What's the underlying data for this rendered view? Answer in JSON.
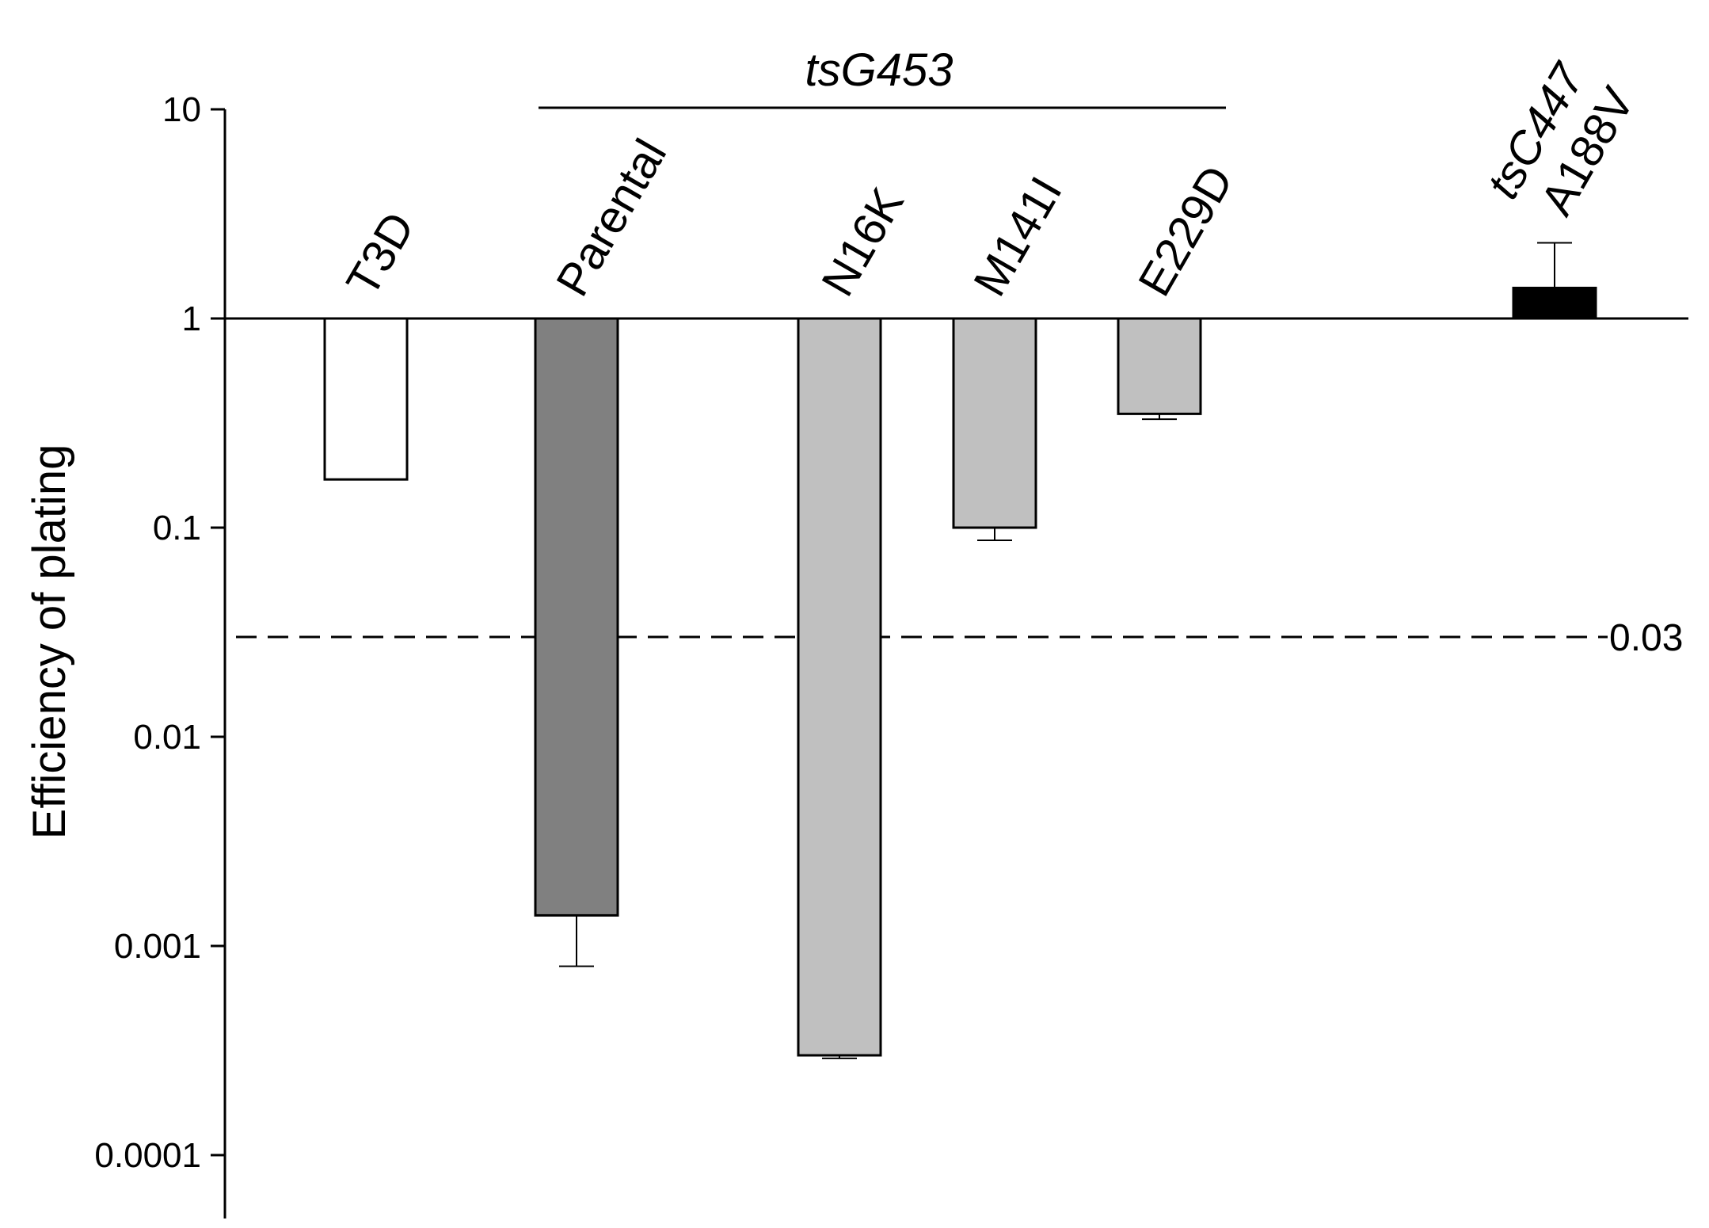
{
  "chart_data": {
    "type": "bar",
    "ylabel": "Efficiency of plating",
    "yscale": "log",
    "ylim": [
      0.0001,
      10
    ],
    "yticks": [
      {
        "value": 10,
        "label": "10"
      },
      {
        "value": 1,
        "label": "1"
      },
      {
        "value": 0.1,
        "label": "0.1"
      },
      {
        "value": 0.01,
        "label": "0.01"
      },
      {
        "value": 0.001,
        "label": "0.001"
      },
      {
        "value": 0.0001,
        "label": "0.0001"
      }
    ],
    "baseline": 1,
    "reference_line": {
      "value": 0.03,
      "label": "0.03",
      "style": "dashed"
    },
    "group": {
      "label": "tsG453",
      "categories": [
        "Parental",
        "N16K",
        "M141I",
        "E229D"
      ]
    },
    "bars": [
      {
        "category": "T3D",
        "value": 0.17,
        "error": null,
        "color": "#ffffff"
      },
      {
        "category": "Parental",
        "value": 0.0014,
        "error": 0.0008,
        "color": "#808080"
      },
      {
        "category": "N16K",
        "value": 0.0003,
        "error": 0.00029,
        "color": "#c0c0c0"
      },
      {
        "category": "M141I",
        "value": 0.1,
        "error": 0.087,
        "color": "#c0c0c0"
      },
      {
        "category": "E229D",
        "value": 0.35,
        "error": 0.33,
        "color": "#c0c0c0"
      },
      {
        "category": "tsC447\nA188V",
        "category_lines": [
          "tsC447",
          "A188V"
        ],
        "category_italic": [
          true,
          false
        ],
        "value": 1.4,
        "error": 2.3,
        "color": "#000000"
      }
    ]
  }
}
